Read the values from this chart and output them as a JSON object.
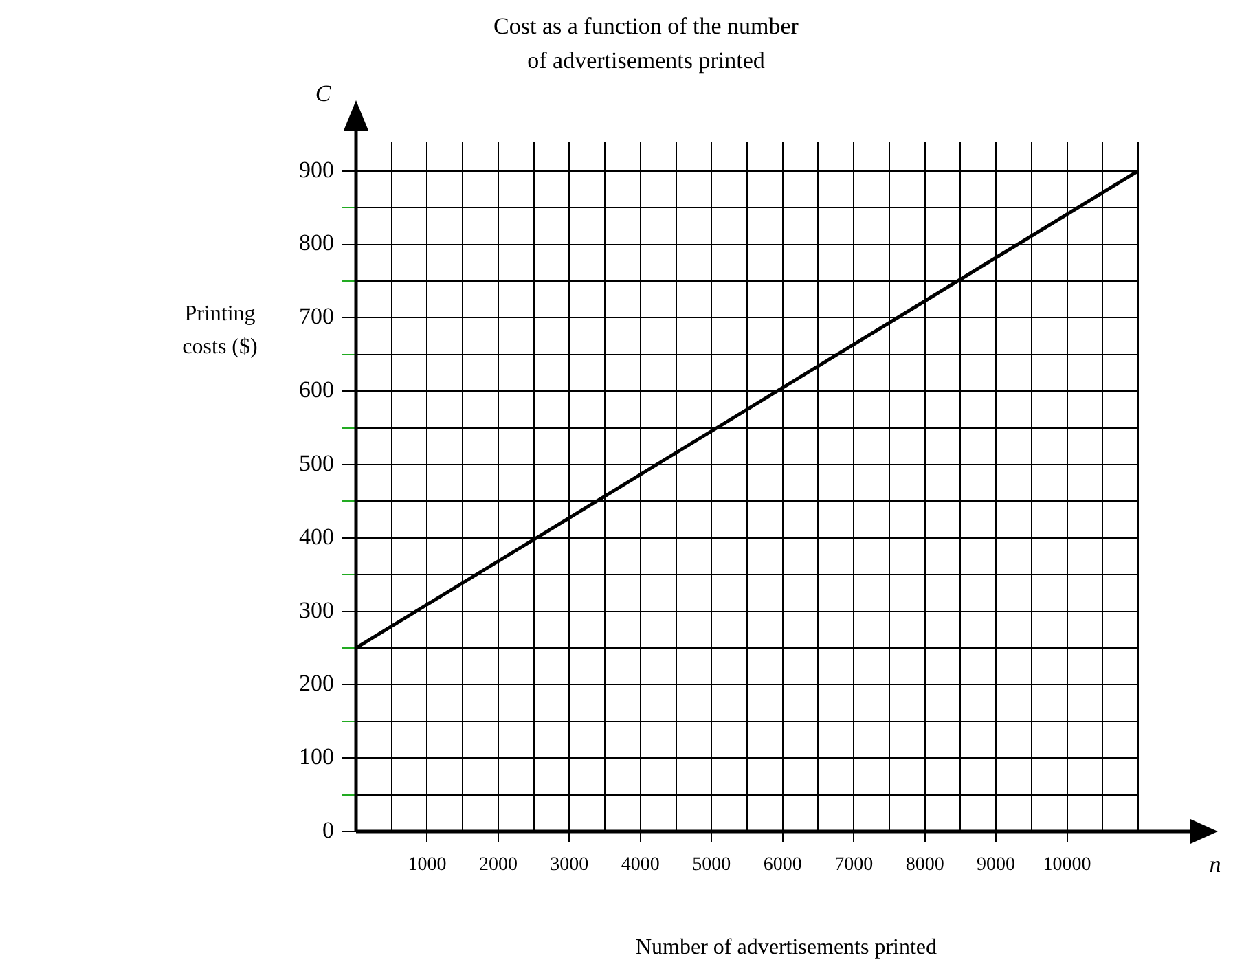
{
  "chart_data": {
    "type": "line",
    "title": "Cost as a function of the number of advertisements printed",
    "xlabel": "Number of advertisements printed",
    "ylabel": "Printing costs ($)",
    "annotations": [
      "C",
      "n"
    ],
    "x": [
      0,
      11000
    ],
    "series": [
      {
        "color": "#000000",
        "values": [
          250,
          900
        ]
      }
    ],
    "xlim": [
      0,
      11000
    ],
    "xticks": [
      {
        "value": 0,
        "label": null
      },
      {
        "value": 500,
        "label": null
      },
      1000,
      {
        "value": 1500,
        "label": null
      },
      2000,
      {
        "value": 2500,
        "label": null
      },
      3000,
      {
        "value": 3500,
        "label": null
      },
      4000,
      {
        "value": 4500,
        "label": null
      },
      5000,
      {
        "value": 5500,
        "label": null
      },
      6000,
      {
        "value": 6500,
        "label": null
      },
      7000,
      {
        "value": 7500,
        "label": null
      },
      8000,
      {
        "value": 8500,
        "label": null
      },
      9000,
      {
        "value": 9500,
        "label": null
      },
      10000,
      {
        "value": 10500,
        "label": null
      },
      {
        "value": 11000,
        "label": null
      }
    ],
    "ylim": [
      0,
      940
    ],
    "yticks": [
      0,
      {
        "value": 50,
        "label": null
      },
      100,
      {
        "value": 150,
        "label": null
      },
      200,
      {
        "value": 250,
        "label": null
      },
      300,
      {
        "value": 350,
        "label": null
      },
      400,
      {
        "value": 450,
        "label": null
      },
      500,
      {
        "value": 550,
        "label": null
      },
      600,
      {
        "value": 650,
        "label": null
      },
      700,
      {
        "value": 750,
        "label": null
      },
      800,
      {
        "value": 850,
        "label": null
      },
      900
    ],
    "grid": true,
    "legend": false,
    "marker": "none",
    "line_style": "solid"
  }
}
